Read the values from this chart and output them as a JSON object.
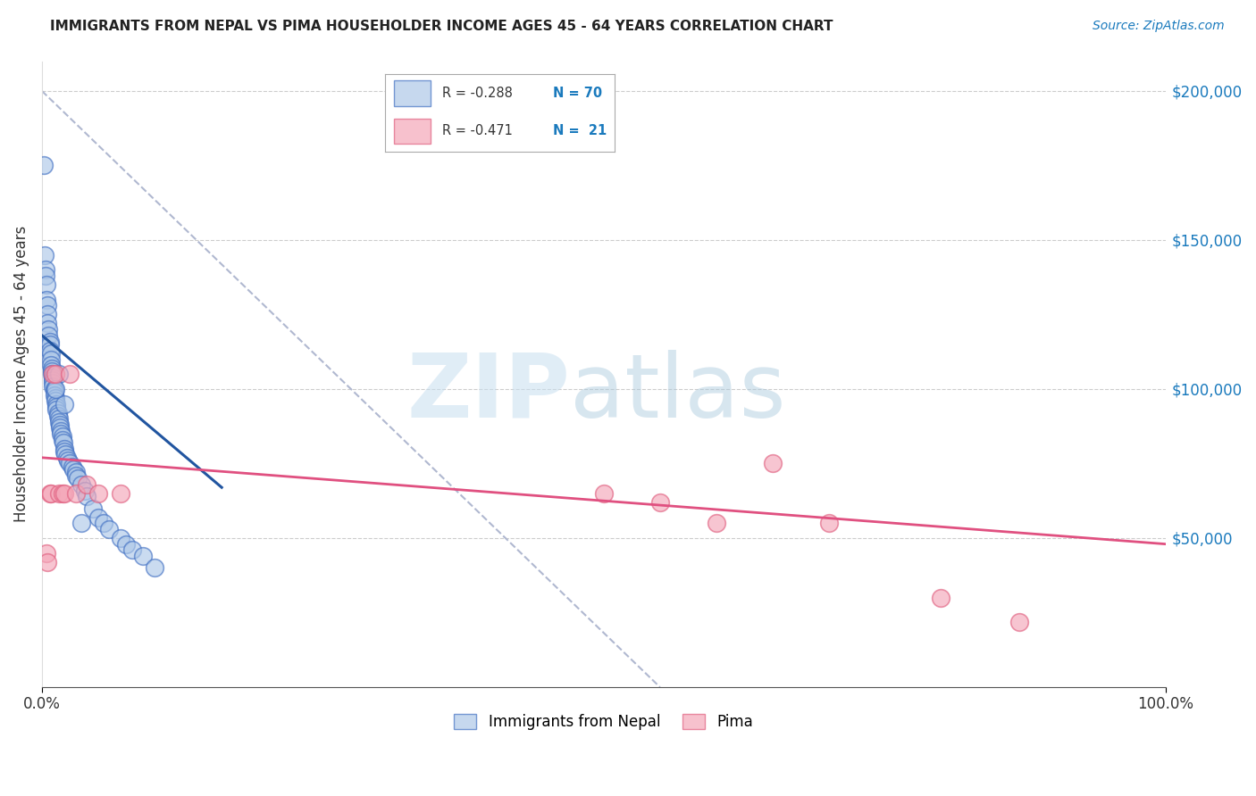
{
  "title": "IMMIGRANTS FROM NEPAL VS PIMA HOUSEHOLDER INCOME AGES 45 - 64 YEARS CORRELATION CHART",
  "source": "Source: ZipAtlas.com",
  "ylabel": "Householder Income Ages 45 - 64 years",
  "y_tick_labels": [
    "",
    "$50,000",
    "$100,000",
    "$150,000",
    "$200,000"
  ],
  "y_tick_values": [
    0,
    50000,
    100000,
    150000,
    200000
  ],
  "legend_blue_r": "R = -0.288",
  "legend_blue_n": "N = 70",
  "legend_pink_r": "R = -0.471",
  "legend_pink_n": "N =  21",
  "blue_fill": "#aec8e8",
  "blue_edge": "#4472c4",
  "pink_fill": "#f4a7b9",
  "pink_edge": "#e06080",
  "blue_line_color": "#2155a0",
  "pink_line_color": "#e05080",
  "gray_dash_color": "#b0b8d0",
  "watermark_zip": "ZIP",
  "watermark_atlas": "atlas",
  "nepal_x": [
    0.2,
    0.25,
    0.3,
    0.35,
    0.4,
    0.4,
    0.5,
    0.5,
    0.5,
    0.6,
    0.6,
    0.7,
    0.7,
    0.7,
    0.8,
    0.8,
    0.8,
    0.9,
    0.9,
    0.9,
    1.0,
    1.0,
    1.0,
    1.0,
    1.1,
    1.1,
    1.1,
    1.2,
    1.2,
    1.3,
    1.3,
    1.3,
    1.4,
    1.4,
    1.5,
    1.5,
    1.6,
    1.6,
    1.7,
    1.7,
    1.8,
    1.8,
    1.9,
    2.0,
    2.0,
    2.1,
    2.2,
    2.3,
    2.5,
    2.7,
    2.8,
    3.0,
    3.0,
    3.2,
    3.5,
    3.8,
    4.0,
    4.5,
    5.0,
    5.5,
    6.0,
    7.0,
    7.5,
    8.0,
    9.0,
    10.0,
    1.5,
    2.0,
    3.5,
    1.2
  ],
  "nepal_y": [
    175000,
    145000,
    140000,
    138000,
    135000,
    130000,
    128000,
    125000,
    122000,
    120000,
    118000,
    116000,
    115000,
    113000,
    112000,
    110000,
    108000,
    107000,
    106000,
    105000,
    104000,
    103000,
    102000,
    101000,
    100000,
    99000,
    98000,
    97000,
    96000,
    95000,
    94000,
    93000,
    92000,
    91000,
    90000,
    89000,
    88000,
    87000,
    86000,
    85000,
    84000,
    83000,
    82000,
    80000,
    79000,
    78000,
    77000,
    76000,
    75000,
    74000,
    73000,
    72000,
    71000,
    70000,
    68000,
    66000,
    64000,
    60000,
    57000,
    55000,
    53000,
    50000,
    48000,
    46000,
    44000,
    40000,
    105000,
    95000,
    55000,
    100000
  ],
  "pima_x": [
    0.4,
    0.5,
    0.7,
    0.8,
    1.0,
    1.2,
    1.5,
    1.8,
    2.0,
    2.5,
    3.0,
    4.0,
    5.0,
    7.0,
    50.0,
    55.0,
    60.0,
    65.0,
    70.0,
    80.0,
    87.0
  ],
  "pima_y": [
    45000,
    42000,
    65000,
    65000,
    105000,
    105000,
    65000,
    65000,
    65000,
    105000,
    65000,
    68000,
    65000,
    65000,
    65000,
    62000,
    55000,
    75000,
    55000,
    30000,
    22000
  ],
  "blue_line_x": [
    0,
    16
  ],
  "blue_line_y": [
    118000,
    67000
  ],
  "pink_line_x": [
    0,
    100
  ],
  "pink_line_y": [
    77000,
    48000
  ],
  "gray_line_x": [
    0,
    55
  ],
  "gray_line_y": [
    200000,
    0
  ],
  "xlim": [
    0,
    100
  ],
  "ylim": [
    0,
    210000
  ]
}
